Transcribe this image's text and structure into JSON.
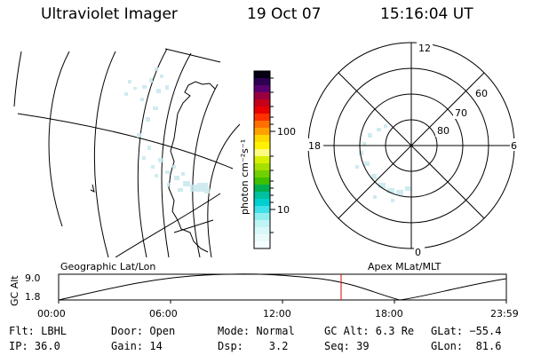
{
  "header": {
    "title": "Ultraviolet Imager",
    "date": "19 Oct 07",
    "time": "15:16:04 UT"
  },
  "colorbar": {
    "unit_label": "photon cm⁻²s⁻¹",
    "tick_100": "100",
    "tick_10": "10"
  },
  "polar_plot": {
    "mlt_labels": {
      "top": "12",
      "left": "18",
      "right": "6",
      "bottom": "0"
    },
    "lat_labels": {
      "lat60": "60",
      "lat70": "70",
      "lat80": "80"
    }
  },
  "timeline": {
    "left_label": "Geographic Lat/Lon",
    "right_label": "Apex MLat/MLT",
    "axis_label": "GC Alt",
    "y_max": "9.0",
    "y_min": "1.8",
    "x_ticks": [
      "00:00",
      "06:00",
      "12:00",
      "18:00",
      "23:59"
    ],
    "marker_color": "#e00000"
  },
  "footer": {
    "filter": "Flt: LBHL",
    "door": "Door: Open",
    "mode": "Mode: Normal",
    "gc_alt": "GC Alt: 6.3 Re",
    "glat": "GLat: −55.4",
    "ip": "IP: 36.0",
    "gain": "Gain: 14",
    "dsp": "Dsp:    3.2",
    "seq": "Seq: 39",
    "glon": "GLon:  81.6"
  }
}
